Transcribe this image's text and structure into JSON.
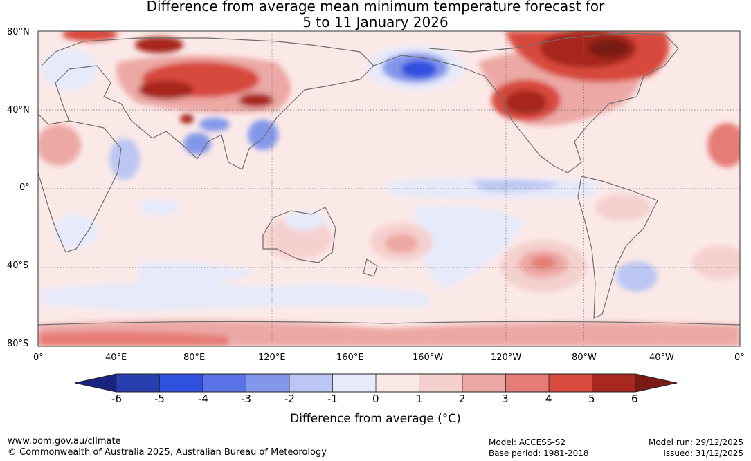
{
  "title": {
    "line1": "Difference from average mean minimum temperature forecast for",
    "line2": "5 to 11 January 2026"
  },
  "map": {
    "lat_labels": [
      "80°N",
      "40°N",
      "0°",
      "40°S",
      "80°S"
    ],
    "lon_labels": [
      "0°",
      "40°E",
      "80°E",
      "120°E",
      "160°E",
      "160°W",
      "120°W",
      "80°W",
      "40°W",
      "0°"
    ]
  },
  "colorbar": {
    "title": "Difference from average (°C)",
    "ticks": [
      "-6",
      "-5",
      "-4",
      "-3",
      "-2",
      "-1",
      "0",
      "1",
      "2",
      "3",
      "4",
      "5",
      "6"
    ],
    "colors": [
      "#1a237e",
      "#283fb0",
      "#3050e0",
      "#5a72e6",
      "#8397ea",
      "#bcc6f2",
      "#e6eafa",
      "#fbe9e8",
      "#f4d0ce",
      "#eca8a4",
      "#e57c76",
      "#d8493e",
      "#a8281f",
      "#7a1a14"
    ]
  },
  "footer": {
    "website": "www.bom.gov.au/climate",
    "copyright": "© Commonwealth of Australia 2025, Australian Bureau of Meteorology",
    "model": "Model: ACCESS-S2",
    "base_period": "Base period: 1981-2018",
    "model_run": "Model run: 29/12/2025",
    "issued": "Issued: 31/12/2025"
  }
}
